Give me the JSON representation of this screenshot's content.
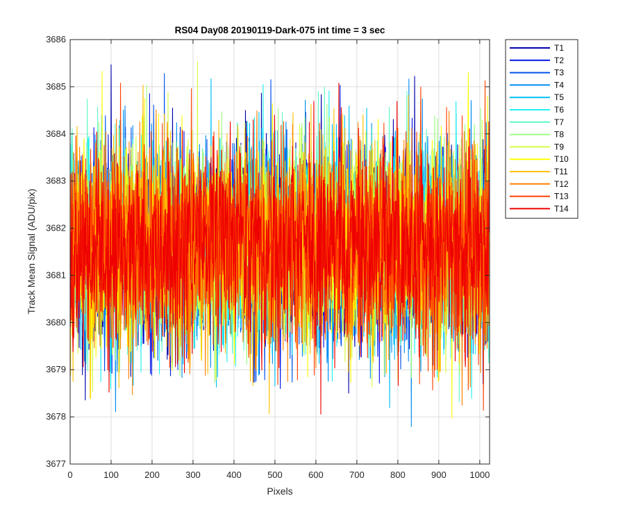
{
  "chart_data": {
    "type": "line",
    "title": "RS04 Day08 20190119-Dark-075 int time = 3 sec",
    "xlabel": "Pixels",
    "ylabel": "Track Mean Signal (ADU/pix)",
    "xlim": [
      0,
      1024
    ],
    "ylim": [
      3677,
      3686
    ],
    "xticks": [
      0,
      100,
      200,
      300,
      400,
      500,
      600,
      700,
      800,
      900,
      1000
    ],
    "yticks": [
      3677,
      3678,
      3679,
      3680,
      3681,
      3682,
      3683,
      3684,
      3685,
      3686
    ],
    "grid": true,
    "legend_position": "outside-top-right",
    "n_points": 1024,
    "noise": {
      "mean": 3681.6,
      "std": 1.05
    },
    "series": [
      {
        "name": "T1",
        "color": "#0000AA"
      },
      {
        "name": "T2",
        "color": "#0014E6"
      },
      {
        "name": "T3",
        "color": "#0050E8"
      },
      {
        "name": "T4",
        "color": "#008CF0"
      },
      {
        "name": "T5",
        "color": "#00BEF8"
      },
      {
        "name": "T6",
        "color": "#20F0F0"
      },
      {
        "name": "T7",
        "color": "#60F8C8"
      },
      {
        "name": "T8",
        "color": "#9CFF80"
      },
      {
        "name": "T9",
        "color": "#D4FF40"
      },
      {
        "name": "T10",
        "color": "#FFFF00"
      },
      {
        "name": "T11",
        "color": "#FFC000"
      },
      {
        "name": "T12",
        "color": "#FF8000"
      },
      {
        "name": "T13",
        "color": "#FF4000"
      },
      {
        "name": "T14",
        "color": "#EE0000"
      }
    ]
  }
}
